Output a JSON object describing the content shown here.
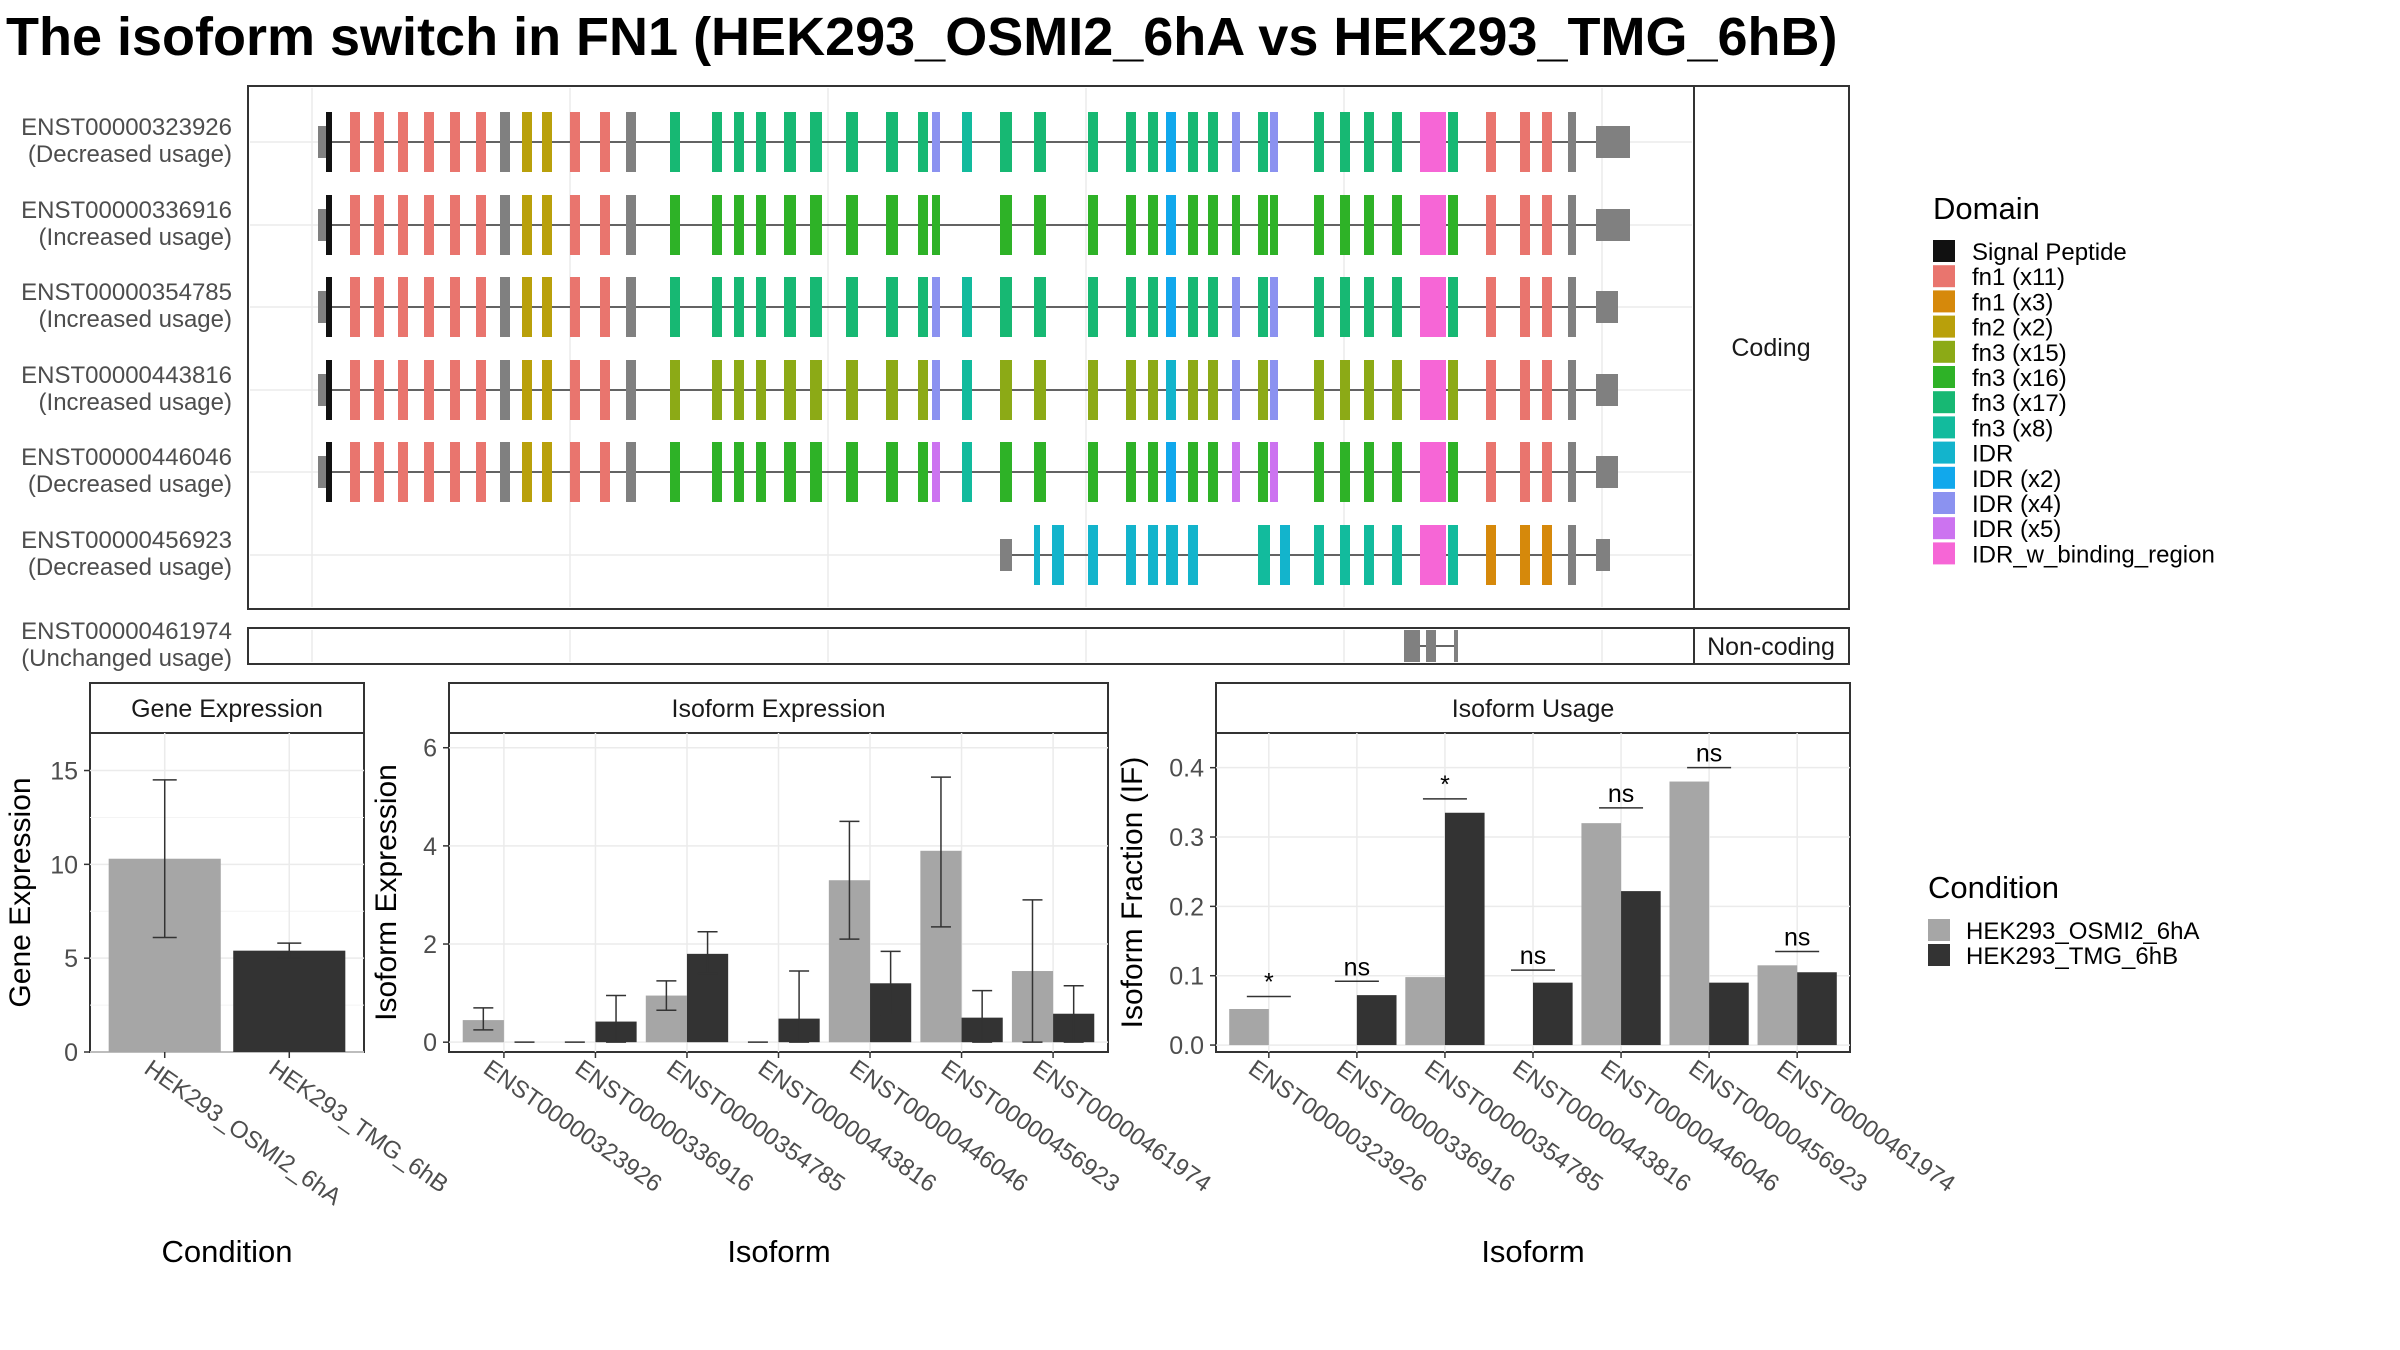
{
  "title": "The isoform switch in FN1 (HEK293_OSMI2_6hA vs HEK293_TMG_6hB)",
  "structure": {
    "coding_strip": "Coding",
    "noncoding_strip": "Non-coding",
    "transcripts": [
      {
        "id": "ENST00000323926",
        "usage": "(Decreased usage)",
        "group": "coding"
      },
      {
        "id": "ENST00000336916",
        "usage": "(Increased usage)",
        "group": "coding"
      },
      {
        "id": "ENST00000354785",
        "usage": "(Increased usage)",
        "group": "coding"
      },
      {
        "id": "ENST00000443816",
        "usage": "(Increased usage)",
        "group": "coding"
      },
      {
        "id": "ENST00000446046",
        "usage": "(Decreased usage)",
        "group": "coding"
      },
      {
        "id": "ENST00000456923",
        "usage": "(Decreased usage)",
        "group": "coding"
      },
      {
        "id": "ENST00000461974",
        "usage": "(Unchanged usage)",
        "group": "noncoding"
      }
    ]
  },
  "domain_legend": {
    "title": "Domain",
    "items": [
      {
        "label": "Signal Peptide",
        "color": "#111111"
      },
      {
        "label": "fn1 (x11)",
        "color": "#E9756E"
      },
      {
        "label": "fn1 (x3)",
        "color": "#D6890B"
      },
      {
        "label": "fn2 (x2)",
        "color": "#B9A00B"
      },
      {
        "label": "fn3 (x15)",
        "color": "#8CAA16"
      },
      {
        "label": "fn3 (x16)",
        "color": "#2EB227"
      },
      {
        "label": "fn3 (x17)",
        "color": "#17B873"
      },
      {
        "label": "fn3 (x8)",
        "color": "#12BB9D"
      },
      {
        "label": "IDR",
        "color": "#13B4CC"
      },
      {
        "label": "IDR (x2)",
        "color": "#11A8EC"
      },
      {
        "label": "IDR (x4)",
        "color": "#8B92F0"
      },
      {
        "label": "IDR (x5)",
        "color": "#CC73F0"
      },
      {
        "label": "IDR_w_binding_region",
        "color": "#F666D6"
      }
    ]
  },
  "condition_legend": {
    "title": "Condition",
    "items": [
      {
        "label": "HEK293_OSMI2_6hA",
        "color": "#A6A6A6"
      },
      {
        "label": "HEK293_TMG_6hB",
        "color": "#333333"
      }
    ]
  },
  "chart_data": [
    {
      "type": "bar",
      "title": "Gene Expression",
      "xlabel": "Condition",
      "ylabel": "Gene Expression",
      "ylim": [
        0,
        17
      ],
      "yticks": [
        "0",
        "5",
        "10",
        "15"
      ],
      "categories": [
        "HEK293_OSMI2_6hA",
        "HEK293_TMG_6hB"
      ],
      "values": [
        10.3,
        5.4
      ],
      "errors": [
        [
          6.1,
          14.5
        ],
        [
          5.0,
          5.8
        ]
      ],
      "colors": [
        "#A6A6A6",
        "#333333"
      ]
    },
    {
      "type": "bar",
      "title": "Isoform Expression",
      "xlabel": "Isoform",
      "ylabel": "Isoform Expression",
      "ylim": [
        -0.2,
        6.3
      ],
      "yticks": [
        "0",
        "2",
        "4",
        "6"
      ],
      "categories": [
        "ENST00000323926",
        "ENST00000336916",
        "ENST00000354785",
        "ENST00000443816",
        "ENST00000446046",
        "ENST00000456923",
        "ENST00000461974"
      ],
      "series": [
        {
          "name": "HEK293_OSMI2_6hA",
          "values": [
            0.45,
            0,
            0.95,
            0,
            3.3,
            3.9,
            1.45
          ],
          "errors": [
            [
              0.25,
              0.7
            ],
            [
              0,
              0
            ],
            [
              0.65,
              1.25
            ],
            [
              0,
              0
            ],
            [
              2.1,
              4.5
            ],
            [
              2.35,
              5.4
            ],
            [
              0,
              2.9
            ]
          ]
        },
        {
          "name": "HEK293_TMG_6hB",
          "values": [
            0,
            0.42,
            1.8,
            0.48,
            1.2,
            0.5,
            0.58
          ],
          "errors": [
            [
              0,
              0
            ],
            [
              0,
              0.95
            ],
            [
              1.4,
              2.25
            ],
            [
              0,
              1.45
            ],
            [
              0.55,
              1.85
            ],
            [
              0,
              1.05
            ],
            [
              0,
              1.15
            ]
          ]
        }
      ]
    },
    {
      "type": "bar",
      "title": "Isoform Usage",
      "xlabel": "Isoform",
      "ylabel": "Isoform Fraction (IF)",
      "ylim": [
        -0.01,
        0.45
      ],
      "yticks": [
        "0.0",
        "0.1",
        "0.2",
        "0.3",
        "0.4"
      ],
      "categories": [
        "ENST00000323926",
        "ENST00000336916",
        "ENST00000354785",
        "ENST00000443816",
        "ENST00000446046",
        "ENST00000456923",
        "ENST00000461974"
      ],
      "series": [
        {
          "name": "HEK293_OSMI2_6hA",
          "values": [
            0.052,
            0,
            0.098,
            0,
            0.32,
            0.38,
            0.115
          ]
        },
        {
          "name": "HEK293_TMG_6hB",
          "values": [
            0,
            0.072,
            0.335,
            0.09,
            0.222,
            0.09,
            0.105
          ]
        }
      ],
      "significance": [
        {
          "label": "*",
          "y": 0.07
        },
        {
          "label": "ns",
          "y": 0.092
        },
        {
          "label": "*",
          "y": 0.355
        },
        {
          "label": "ns",
          "y": 0.108
        },
        {
          "label": "ns",
          "y": 0.342
        },
        {
          "label": "ns",
          "y": 0.4
        },
        {
          "label": "ns",
          "y": 0.135
        }
      ]
    }
  ]
}
